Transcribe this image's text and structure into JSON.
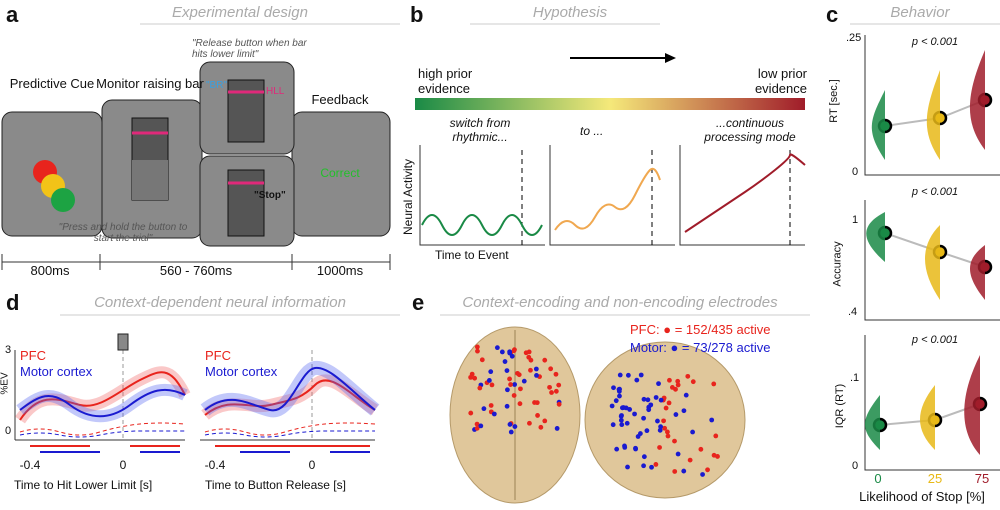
{
  "panel_a": {
    "letter": "a",
    "title": "Experimental design",
    "screens": [
      "Predictive Cue",
      "Monitor raising bar",
      "Feedback"
    ],
    "br": "\"BR\"",
    "hll": "HLL",
    "stop": "\"Stop\"",
    "correct": "Correct",
    "release_note": "\"Release button when bar hits lower limit\"",
    "press_note": "\"Press and hold the button to start the trial\"",
    "timeline": [
      "800ms",
      "560 - 760ms",
      "1000ms"
    ]
  },
  "panel_b": {
    "letter": "b",
    "title": "Hypothesis",
    "high": "high prior evidence",
    "low": "low prior evidence",
    "modes": [
      "switch from rhythmic...",
      "to ...",
      "...continuous processing mode"
    ],
    "ylabel": "Neural Activity",
    "xlabel": "Time to Event"
  },
  "panel_c": {
    "letter": "c",
    "title": "Behavior",
    "plots": [
      {
        "ylabel": "RT [sec.]",
        "p": "p < 0.001",
        "ticks": [
          ".25",
          "0"
        ]
      },
      {
        "ylabel": "Accuracy",
        "p": "p < 0.001",
        "ticks": [
          "1",
          ".4"
        ]
      },
      {
        "ylabel": "IQR (RT)",
        "p": "p < 0.001",
        "ticks": [
          ".1",
          "0"
        ]
      }
    ],
    "xticks": [
      "0",
      "25",
      "75"
    ],
    "xlabel": "Likelihood of Stop [%]"
  },
  "panel_d": {
    "letter": "d",
    "title": "Context-dependent neural information",
    "pfc": "PFC",
    "motor": "Motor cortex",
    "yticks": [
      "3",
      "0"
    ],
    "ylabel": "%EV",
    "xticks": [
      "-0.4",
      "0"
    ],
    "xlabels": [
      "Time to Hit Lower Limit [s]",
      "Time to Button Release [s]"
    ]
  },
  "panel_e": {
    "letter": "e",
    "title": "Context-encoding and non-encoding electrodes",
    "pfc": "PFC: ● = 152/435 active",
    "motor": "Motor: ● = 73/278 active"
  }
}
